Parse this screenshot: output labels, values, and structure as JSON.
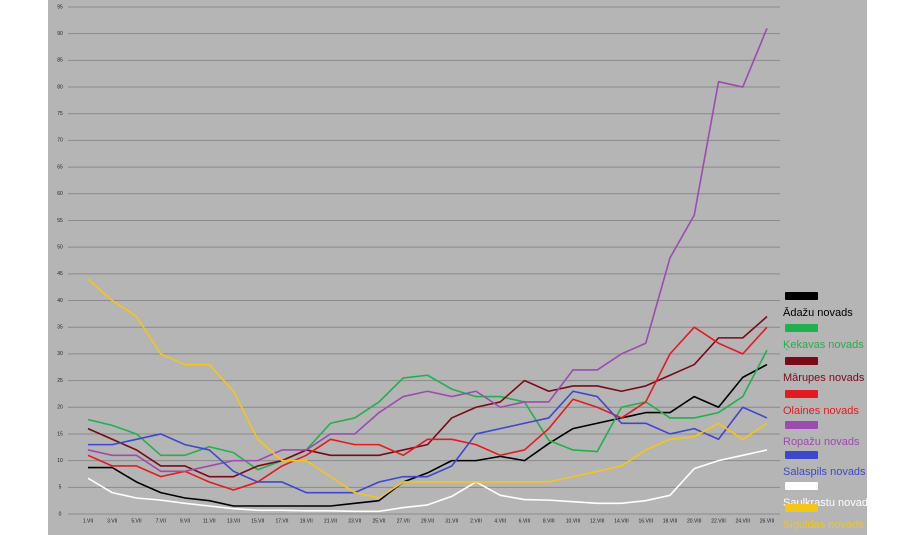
{
  "chart_data": {
    "type": "line",
    "categories": [
      "1.VII",
      "3.VII",
      "5.VII",
      "7.VII",
      "9.VII",
      "11.VII",
      "13.VII",
      "15.VII",
      "17.VII",
      "19.VII",
      "21.VII",
      "23.VII",
      "25.VII",
      "27.VII",
      "29.VII",
      "31.VII",
      "2.VIII",
      "4.VIII",
      "6.VIII",
      "8.VIII",
      "10.VIII",
      "12.VIII",
      "14.VIII",
      "16.VIII",
      "18.VIII",
      "20.VIII",
      "22.VIII",
      "24.VIII",
      "26.VIII"
    ],
    "series": [
      {
        "name": "Ādažu novads",
        "color": "#000000",
        "values": [
          8.7,
          8.7,
          6,
          4,
          3,
          2.5,
          1.5,
          1.5,
          1.5,
          1.5,
          1.5,
          2,
          2.5,
          6,
          7.7,
          10,
          10,
          10.8,
          10,
          13.2,
          16,
          17,
          18,
          19,
          19,
          22,
          20,
          25.6,
          28
        ]
      },
      {
        "name": "Ķekavas novads",
        "color": "#22b04c",
        "values": [
          17.7,
          16.6,
          15,
          11,
          11,
          12.6,
          11.5,
          8.3,
          10,
          12,
          17,
          18,
          21,
          25.5,
          26,
          23.4,
          22,
          22,
          21,
          13.8,
          12,
          11.7,
          20,
          21,
          18,
          18,
          19,
          22,
          30.7
        ]
      },
      {
        "name": "Mārupes novads",
        "color": "#7a0a16",
        "values": [
          16,
          14,
          12,
          9,
          9,
          7,
          7,
          9,
          10,
          12,
          11,
          11,
          11,
          12,
          13,
          18,
          20,
          21,
          25,
          23,
          24,
          24,
          23,
          24,
          26,
          28,
          33,
          33,
          37
        ]
      },
      {
        "name": "Olaines novads",
        "color": "#e21b22",
        "values": [
          11,
          9,
          9,
          7,
          8,
          6,
          4.5,
          6,
          9,
          11,
          14,
          13,
          13,
          11,
          14,
          14,
          13,
          11,
          12,
          16,
          21.5,
          20,
          18,
          21,
          30,
          35,
          32,
          30,
          35
        ]
      },
      {
        "name": "Ropažu novads",
        "color": "#9c4bb0",
        "values": [
          12,
          11,
          11,
          8,
          8,
          9,
          10,
          10,
          12,
          12,
          15,
          15,
          19,
          22,
          23,
          22,
          23,
          20,
          21,
          21,
          27,
          27,
          30,
          32,
          48,
          56,
          81,
          80,
          91
        ]
      },
      {
        "name": "Salaspils novads",
        "color": "#3f48cc",
        "values": [
          13,
          13,
          14,
          15,
          13,
          12,
          8,
          6,
          6,
          4,
          4,
          4,
          6,
          7,
          7,
          9,
          15,
          16,
          17,
          18,
          23,
          22,
          17,
          17,
          15,
          16,
          14,
          20,
          18
        ]
      },
      {
        "name": "Saulkrastu novads",
        "color": "#ffffff",
        "values": [
          6.7,
          4,
          3,
          2.6,
          2,
          1.5,
          1,
          0.7,
          0.7,
          0.6,
          0.6,
          0.5,
          0.5,
          1.2,
          1.7,
          3.3,
          6,
          3.5,
          2.7,
          2.6,
          2.3,
          2,
          2,
          2.5,
          3.5,
          8.5,
          10,
          11,
          12
        ]
      },
      {
        "name": "Siguldas novads",
        "color": "#f5c518",
        "values": [
          44,
          40,
          37,
          30,
          28,
          28,
          23,
          14,
          10,
          10,
          7,
          4,
          3,
          6,
          6,
          6,
          6,
          6,
          6,
          6,
          7,
          8,
          9,
          12,
          14,
          14.5,
          17,
          14,
          17
        ]
      }
    ],
    "ylim": [
      0,
      95
    ],
    "yticks": [
      0,
      5,
      10,
      15,
      20,
      25,
      30,
      35,
      40,
      45,
      50,
      55,
      60,
      65,
      70,
      75,
      80,
      85,
      90,
      95
    ],
    "grid": true,
    "legend": "right"
  }
}
